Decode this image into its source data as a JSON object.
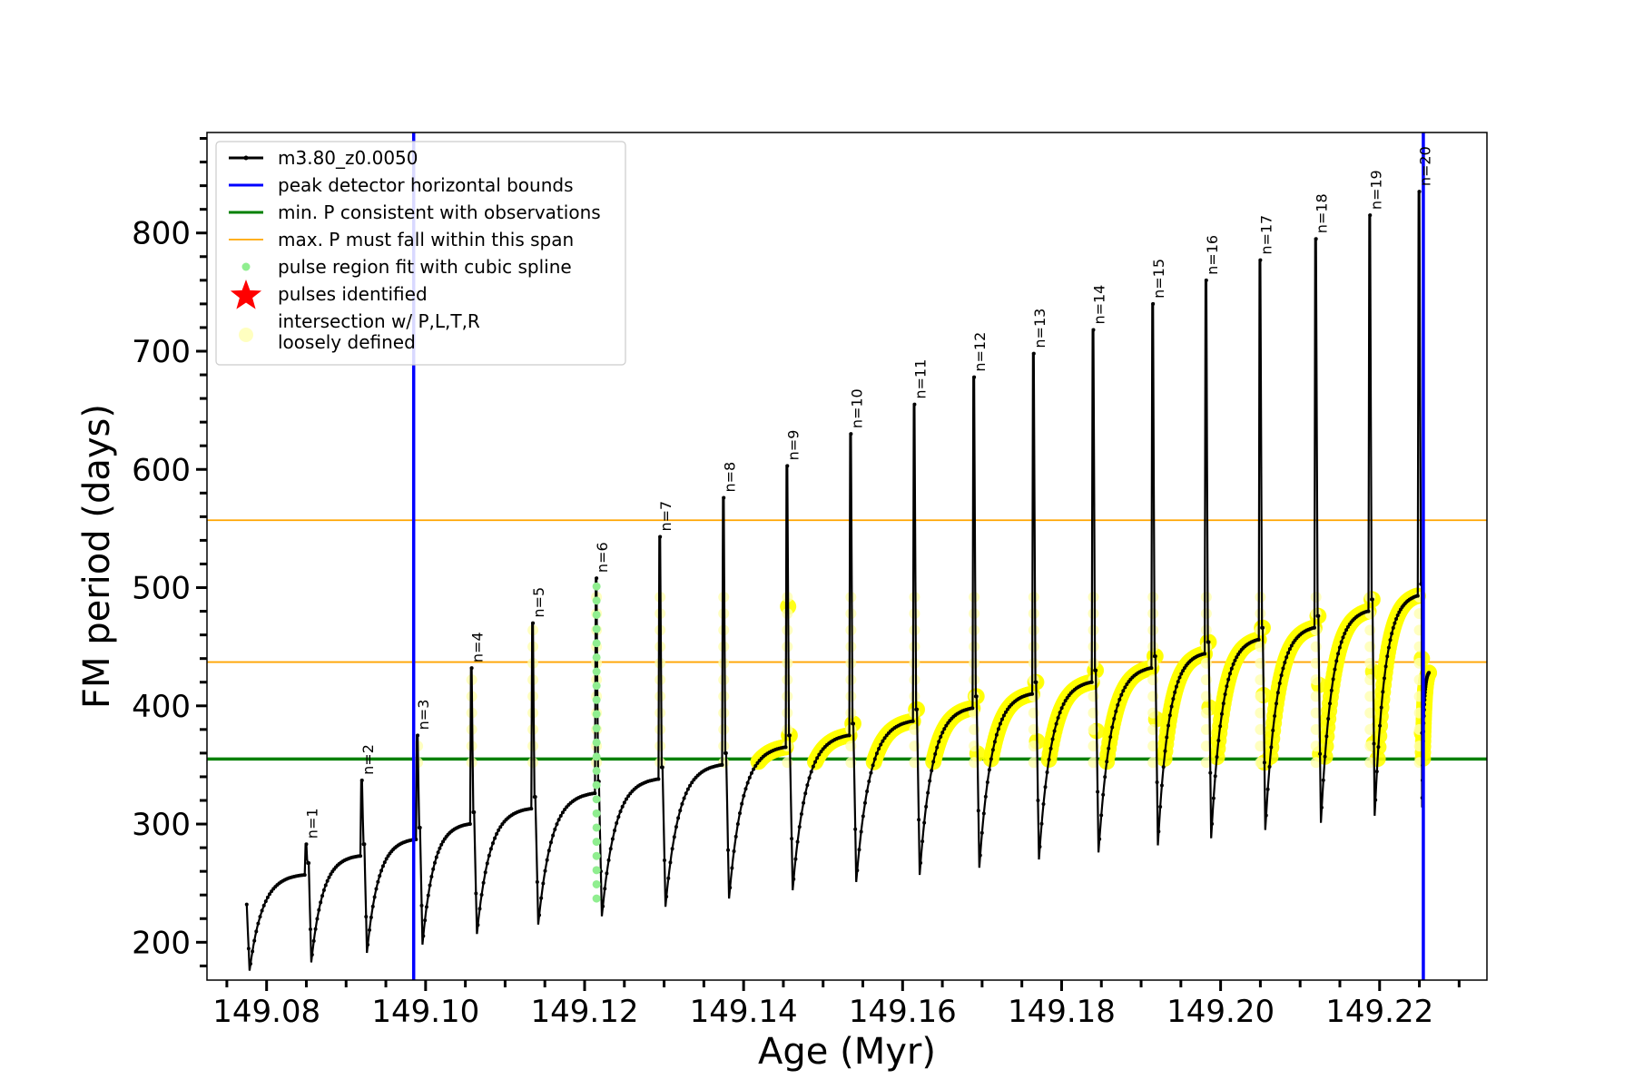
{
  "chart_data": {
    "type": "line",
    "title": "",
    "xlabel": "Age (Myr)",
    "ylabel": "FM period (days)",
    "xlim": [
      149.0725,
      149.2335
    ],
    "ylim": [
      168,
      885
    ],
    "x_ticks": [
      149.08,
      149.1,
      149.12,
      149.14,
      149.16,
      149.18,
      149.2,
      149.22
    ],
    "x_tick_labels": [
      "149.08",
      "149.10",
      "149.12",
      "149.14",
      "149.16",
      "149.18",
      "149.20",
      "149.22"
    ],
    "y_ticks": [
      200,
      300,
      400,
      500,
      600,
      700,
      800
    ],
    "y_tick_labels": [
      "200",
      "300",
      "400",
      "500",
      "600",
      "700",
      "800"
    ],
    "grid": false,
    "legend_position": "top-left",
    "legend": [
      {
        "label": "m3.80_z0.0050",
        "color": "#000000",
        "kind": "line-marker"
      },
      {
        "label": "peak detector horizontal bounds",
        "color": "#0000ff",
        "kind": "line"
      },
      {
        "label": "min. P consistent with observations",
        "color": "#008000",
        "kind": "line"
      },
      {
        "label": "max. P must fall within this span",
        "color": "#ffa500",
        "kind": "line"
      },
      {
        "label": "pulse region fit with cubic spline",
        "color": "#90ee90",
        "kind": "dot"
      },
      {
        "label": "pulses identified",
        "color": "#ff0000",
        "kind": "star"
      },
      {
        "label": "intersection w/ P,L,T,R",
        "label2": "loosely defined",
        "color": "#ffffc0",
        "kind": "big-dot"
      }
    ],
    "vertical_lines": [
      {
        "name": "peak detector horizontal bounds",
        "x": 149.0985,
        "color": "#0000ff"
      },
      {
        "name": "peak detector horizontal bounds",
        "x": 149.2255,
        "color": "#0000ff"
      }
    ],
    "horizontal_lines": [
      {
        "name": "min. P consistent with observations",
        "y": 355,
        "color": "#008000"
      },
      {
        "name": "max. P must fall within this span",
        "y": 437,
        "color": "#ffa500"
      },
      {
        "name": "max. P must fall within this span",
        "y": 557,
        "color": "#ffa500"
      }
    ],
    "series_color": "#000000",
    "highlight_color": "#ffff00",
    "spline_color": "#90ee90",
    "start": {
      "x": 149.0775,
      "y": 232,
      "min": 176,
      "top": 257
    },
    "pulses": [
      {
        "label": "n=1",
        "x": 149.085,
        "peak": 283,
        "min": 183,
        "top": 273
      },
      {
        "label": "n=2",
        "x": 149.092,
        "peak": 337,
        "min": 191,
        "top": 287
      },
      {
        "label": "n=3",
        "x": 149.099,
        "peak": 375,
        "min": 198,
        "top": 300
      },
      {
        "label": "n=4",
        "x": 149.1058,
        "peak": 432,
        "min": 207,
        "top": 313
      },
      {
        "label": "n=5",
        "x": 149.1135,
        "peak": 470,
        "min": 215,
        "top": 326
      },
      {
        "label": "n=6",
        "x": 149.1215,
        "peak": 508,
        "min": 222,
        "top": 338
      },
      {
        "label": "n=7",
        "x": 149.1295,
        "peak": 543,
        "min": 230,
        "top": 350
      },
      {
        "label": "n=8",
        "x": 149.1375,
        "peak": 576,
        "min": 237,
        "top": 365
      },
      {
        "label": "n=9",
        "x": 149.1455,
        "peak": 603,
        "min": 244,
        "top": 375
      },
      {
        "label": "n=10",
        "x": 149.1535,
        "peak": 630,
        "min": 251,
        "top": 387
      },
      {
        "label": "n=11",
        "x": 149.1615,
        "peak": 655,
        "min": 257,
        "top": 398
      },
      {
        "label": "n=12",
        "x": 149.169,
        "peak": 678,
        "min": 263,
        "top": 410
      },
      {
        "label": "n=13",
        "x": 149.1765,
        "peak": 698,
        "min": 270,
        "top": 420
      },
      {
        "label": "n=14",
        "x": 149.184,
        "peak": 718,
        "min": 276,
        "top": 432
      },
      {
        "label": "n=15",
        "x": 149.1915,
        "peak": 740,
        "min": 282,
        "top": 444
      },
      {
        "label": "n=16",
        "x": 149.1982,
        "peak": 760,
        "min": 288,
        "top": 456
      },
      {
        "label": "n=17",
        "x": 149.205,
        "peak": 777,
        "min": 295,
        "top": 466
      },
      {
        "label": "n=18",
        "x": 149.212,
        "peak": 795,
        "min": 301,
        "top": 480
      },
      {
        "label": "n=19",
        "x": 149.2188,
        "peak": 815,
        "min": 307,
        "top": 493
      },
      {
        "label": "n=20",
        "x": 149.225,
        "peak": 835,
        "min": 314,
        "top": 428
      }
    ],
    "spline_pulse_index": 5
  }
}
